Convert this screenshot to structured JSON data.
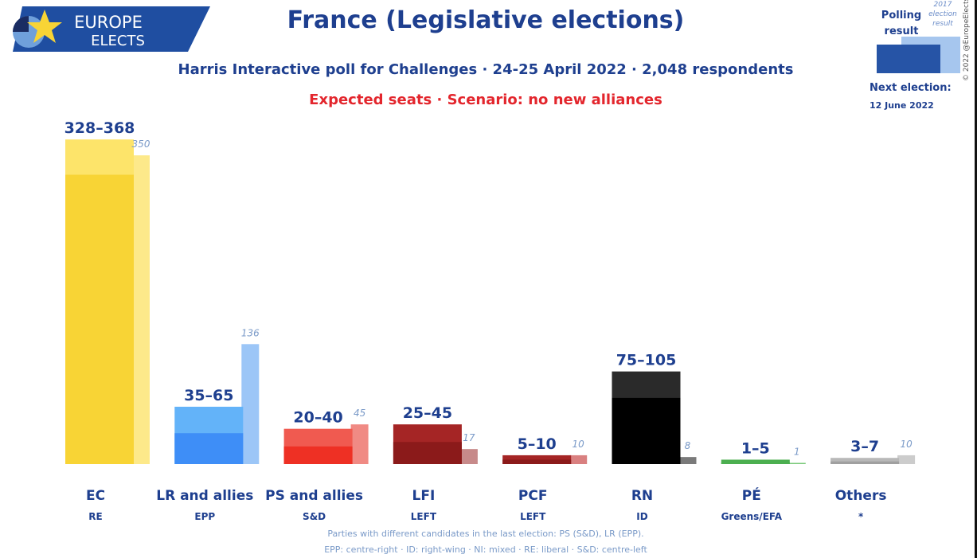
{
  "logo": {
    "line1": "EUROPE",
    "line2": "ELECTS"
  },
  "title": "France (Legislative elections)",
  "subtitle": "Harris Interactive poll for Challenges · 24-25 April 2022 · 2,048 respondents",
  "scenario": "Expected seats · Scenario: no new alliances",
  "legend": {
    "polling": "Polling result",
    "previous": "2017 election result",
    "next_election_label": "Next election:",
    "next_election_date": "12 June 2022"
  },
  "copyright": "© 2022 @EuropeElects",
  "footnotes": [
    "Parties with different candidates in the last election: PS (S&D), LR (EPP).",
    "EPP: centre-right · ID: right-wing · NI: mixed · RE: liberal · S&D: centre-left"
  ],
  "chart_data": {
    "type": "bar",
    "categories": [
      "EC",
      "LR and allies",
      "PS and allies",
      "LFI",
      "PCF",
      "RN",
      "PÉ",
      "Others"
    ],
    "groups": [
      "RE",
      "EPP",
      "S&D",
      "LEFT",
      "LEFT",
      "ID",
      "Greens/EFA",
      "*"
    ],
    "range_labels": [
      "328–368",
      "35–65",
      "20–40",
      "25–45",
      "5–10",
      "75–105",
      "1–5",
      "3–7"
    ],
    "series": [
      {
        "name": "Polling result",
        "low": [
          328,
          35,
          20,
          25,
          5,
          75,
          1,
          3
        ],
        "high": [
          368,
          65,
          40,
          45,
          10,
          105,
          5,
          7
        ]
      },
      {
        "name": "2017 election result",
        "values": [
          350,
          136,
          45,
          17,
          10,
          8,
          1,
          10
        ]
      }
    ],
    "colors": {
      "main": [
        "#f8d435",
        "#3e8ef7",
        "#ee3024",
        "#8b1a1a",
        "#8b1a1a",
        "#000000",
        "#4caf50",
        "#a0a0a0"
      ],
      "range": [
        "#fde46a",
        "#63b3f9",
        "#f05a50",
        "#a52525",
        "#a52525",
        "#2a2a2a",
        "#4caf50",
        "#b8b8b8"
      ],
      "prev": [
        "#fde98a",
        "#9cc6f7",
        "#f08a84",
        "#c78a8a",
        "#d98080",
        "#7a7a7a",
        "#7ac97a",
        "#cccccc"
      ]
    },
    "ylim": [
      0,
      370
    ]
  }
}
